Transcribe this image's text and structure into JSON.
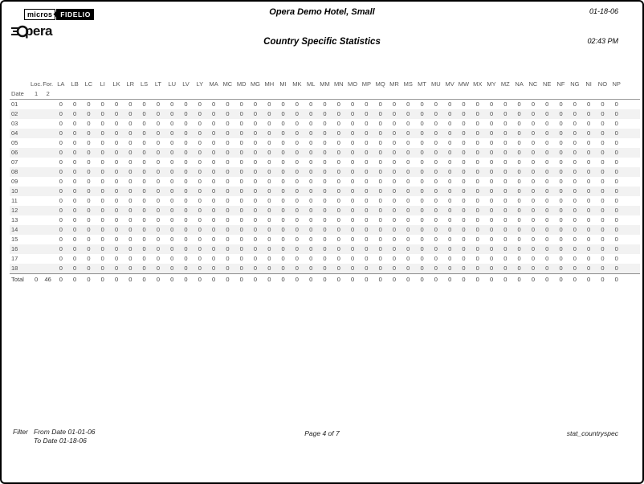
{
  "header": {
    "hotel_name": "Opera Demo Hotel, Small",
    "report_title": "Country Specific Statistics",
    "report_date": "01-18-06",
    "report_time": "02:43 PM"
  },
  "logo": {
    "micros": "micros",
    "fidelio": "FIDELIO",
    "opera_text": "pera"
  },
  "icons": {
    "diamond": "◆"
  },
  "colors": {
    "stripe": "#f2f2f2",
    "header_rule": "#9a9a9a",
    "total_rule": "#8c8c8c",
    "fidelio_bg": "#000000"
  },
  "table": {
    "header": {
      "loc": "Loc.",
      "for": "For.",
      "date": "Date",
      "loc_sub": "1",
      "for_sub": "2"
    },
    "country_columns": [
      "LA",
      "LB",
      "LC",
      "LI",
      "LK",
      "LR",
      "LS",
      "LT",
      "LU",
      "LV",
      "LY",
      "MA",
      "MC",
      "MD",
      "MG",
      "MH",
      "MI",
      "MK",
      "ML",
      "MM",
      "MN",
      "MO",
      "MP",
      "MQ",
      "MR",
      "MS",
      "MT",
      "MU",
      "MV",
      "MW",
      "MX",
      "MY",
      "MZ",
      "NA",
      "NC",
      "NE",
      "NF",
      "NG",
      "NI",
      "NO",
      "NP"
    ],
    "rows": [
      {
        "date": "01",
        "loc": "",
        "for": "",
        "values": [
          "0",
          "0",
          "0",
          "0",
          "0",
          "0",
          "0",
          "0",
          "0",
          "0",
          "0",
          "0",
          "0",
          "0",
          "0",
          "0",
          "0",
          "0",
          "0",
          "0",
          "0",
          "0",
          "0",
          "0",
          "0",
          "0",
          "0",
          "0",
          "0",
          "0",
          "0",
          "0",
          "0",
          "0",
          "0",
          "0",
          "0",
          "0",
          "0",
          "0",
          "0"
        ]
      },
      {
        "date": "02",
        "loc": "",
        "for": "",
        "values": [
          "0",
          "0",
          "0",
          "0",
          "0",
          "0",
          "0",
          "0",
          "0",
          "0",
          "0",
          "0",
          "0",
          "0",
          "0",
          "0",
          "0",
          "0",
          "0",
          "0",
          "0",
          "0",
          "0",
          "0",
          "0",
          "0",
          "0",
          "0",
          "0",
          "0",
          "0",
          "0",
          "0",
          "0",
          "0",
          "0",
          "0",
          "0",
          "0",
          "0",
          "0"
        ]
      },
      {
        "date": "03",
        "loc": "",
        "for": "",
        "values": [
          "0",
          "0",
          "0",
          "0",
          "0",
          "0",
          "0",
          "0",
          "0",
          "0",
          "0",
          "0",
          "0",
          "0",
          "0",
          "0",
          "0",
          "0",
          "0",
          "0",
          "0",
          "0",
          "0",
          "0",
          "0",
          "0",
          "0",
          "0",
          "0",
          "0",
          "0",
          "0",
          "0",
          "0",
          "0",
          "0",
          "0",
          "0",
          "0",
          "0",
          "0"
        ]
      },
      {
        "date": "04",
        "loc": "",
        "for": "",
        "values": [
          "0",
          "0",
          "0",
          "0",
          "0",
          "0",
          "0",
          "0",
          "0",
          "0",
          "0",
          "0",
          "0",
          "0",
          "0",
          "0",
          "0",
          "0",
          "0",
          "0",
          "0",
          "0",
          "0",
          "0",
          "0",
          "0",
          "0",
          "0",
          "0",
          "0",
          "0",
          "0",
          "0",
          "0",
          "0",
          "0",
          "0",
          "0",
          "0",
          "0",
          "0"
        ]
      },
      {
        "date": "05",
        "loc": "",
        "for": "",
        "values": [
          "0",
          "0",
          "0",
          "0",
          "0",
          "0",
          "0",
          "0",
          "0",
          "0",
          "0",
          "0",
          "0",
          "0",
          "0",
          "0",
          "0",
          "0",
          "0",
          "0",
          "0",
          "0",
          "0",
          "0",
          "0",
          "0",
          "0",
          "0",
          "0",
          "0",
          "0",
          "0",
          "0",
          "0",
          "0",
          "0",
          "0",
          "0",
          "0",
          "0",
          "0"
        ]
      },
      {
        "date": "06",
        "loc": "",
        "for": "",
        "values": [
          "0",
          "0",
          "0",
          "0",
          "0",
          "0",
          "0",
          "0",
          "0",
          "0",
          "0",
          "0",
          "0",
          "0",
          "0",
          "0",
          "0",
          "0",
          "0",
          "0",
          "0",
          "0",
          "0",
          "0",
          "0",
          "0",
          "0",
          "0",
          "0",
          "0",
          "0",
          "0",
          "0",
          "0",
          "0",
          "0",
          "0",
          "0",
          "0",
          "0",
          "0"
        ]
      },
      {
        "date": "07",
        "loc": "",
        "for": "",
        "values": [
          "0",
          "0",
          "0",
          "0",
          "0",
          "0",
          "0",
          "0",
          "0",
          "0",
          "0",
          "0",
          "0",
          "0",
          "0",
          "0",
          "0",
          "0",
          "0",
          "0",
          "0",
          "0",
          "0",
          "0",
          "0",
          "0",
          "0",
          "0",
          "0",
          "0",
          "0",
          "0",
          "0",
          "0",
          "0",
          "0",
          "0",
          "0",
          "0",
          "0",
          "0"
        ]
      },
      {
        "date": "08",
        "loc": "",
        "for": "",
        "values": [
          "0",
          "0",
          "0",
          "0",
          "0",
          "0",
          "0",
          "0",
          "0",
          "0",
          "0",
          "0",
          "0",
          "0",
          "0",
          "0",
          "0",
          "0",
          "0",
          "0",
          "0",
          "0",
          "0",
          "0",
          "0",
          "0",
          "0",
          "0",
          "0",
          "0",
          "0",
          "0",
          "0",
          "0",
          "0",
          "0",
          "0",
          "0",
          "0",
          "0",
          "0"
        ]
      },
      {
        "date": "09",
        "loc": "",
        "for": "",
        "values": [
          "0",
          "0",
          "0",
          "0",
          "0",
          "0",
          "0",
          "0",
          "0",
          "0",
          "0",
          "0",
          "0",
          "0",
          "0",
          "0",
          "0",
          "0",
          "0",
          "0",
          "0",
          "0",
          "0",
          "0",
          "0",
          "0",
          "0",
          "0",
          "0",
          "0",
          "0",
          "0",
          "0",
          "0",
          "0",
          "0",
          "0",
          "0",
          "0",
          "0",
          "0"
        ]
      },
      {
        "date": "10",
        "loc": "",
        "for": "",
        "values": [
          "0",
          "0",
          "0",
          "0",
          "0",
          "0",
          "0",
          "0",
          "0",
          "0",
          "0",
          "0",
          "0",
          "0",
          "0",
          "0",
          "0",
          "0",
          "0",
          "0",
          "0",
          "0",
          "0",
          "0",
          "0",
          "0",
          "0",
          "0",
          "0",
          "0",
          "0",
          "0",
          "0",
          "0",
          "0",
          "0",
          "0",
          "0",
          "0",
          "0",
          "0"
        ]
      },
      {
        "date": "11",
        "loc": "",
        "for": "",
        "values": [
          "0",
          "0",
          "0",
          "0",
          "0",
          "0",
          "0",
          "0",
          "0",
          "0",
          "0",
          "0",
          "0",
          "0",
          "0",
          "0",
          "0",
          "0",
          "0",
          "0",
          "0",
          "0",
          "0",
          "0",
          "0",
          "0",
          "0",
          "0",
          "0",
          "0",
          "0",
          "0",
          "0",
          "0",
          "0",
          "0",
          "0",
          "0",
          "0",
          "0",
          "0"
        ]
      },
      {
        "date": "12",
        "loc": "",
        "for": "",
        "values": [
          "0",
          "0",
          "0",
          "0",
          "0",
          "0",
          "0",
          "0",
          "0",
          "0",
          "0",
          "0",
          "0",
          "0",
          "0",
          "0",
          "0",
          "0",
          "0",
          "0",
          "0",
          "0",
          "0",
          "0",
          "0",
          "0",
          "0",
          "0",
          "0",
          "0",
          "0",
          "0",
          "0",
          "0",
          "0",
          "0",
          "0",
          "0",
          "0",
          "0",
          "0"
        ]
      },
      {
        "date": "13",
        "loc": "",
        "for": "",
        "values": [
          "0",
          "0",
          "0",
          "0",
          "0",
          "0",
          "0",
          "0",
          "0",
          "0",
          "0",
          "0",
          "0",
          "0",
          "0",
          "0",
          "0",
          "0",
          "0",
          "0",
          "0",
          "0",
          "0",
          "0",
          "0",
          "0",
          "0",
          "0",
          "0",
          "0",
          "0",
          "0",
          "0",
          "0",
          "0",
          "0",
          "0",
          "0",
          "0",
          "0",
          "0"
        ]
      },
      {
        "date": "14",
        "loc": "",
        "for": "",
        "values": [
          "0",
          "0",
          "0",
          "0",
          "0",
          "0",
          "0",
          "0",
          "0",
          "0",
          "0",
          "0",
          "0",
          "0",
          "0",
          "0",
          "0",
          "0",
          "0",
          "0",
          "0",
          "0",
          "0",
          "0",
          "0",
          "0",
          "0",
          "0",
          "0",
          "0",
          "0",
          "0",
          "0",
          "0",
          "0",
          "0",
          "0",
          "0",
          "0",
          "0",
          "0"
        ]
      },
      {
        "date": "15",
        "loc": "",
        "for": "",
        "values": [
          "0",
          "0",
          "0",
          "0",
          "0",
          "0",
          "0",
          "0",
          "0",
          "0",
          "0",
          "0",
          "0",
          "0",
          "0",
          "0",
          "0",
          "0",
          "0",
          "0",
          "0",
          "0",
          "0",
          "0",
          "0",
          "0",
          "0",
          "0",
          "0",
          "0",
          "0",
          "0",
          "0",
          "0",
          "0",
          "0",
          "0",
          "0",
          "0",
          "0",
          "0"
        ]
      },
      {
        "date": "16",
        "loc": "",
        "for": "",
        "values": [
          "0",
          "0",
          "0",
          "0",
          "0",
          "0",
          "0",
          "0",
          "0",
          "0",
          "0",
          "0",
          "0",
          "0",
          "0",
          "0",
          "0",
          "0",
          "0",
          "0",
          "0",
          "0",
          "0",
          "0",
          "0",
          "0",
          "0",
          "0",
          "0",
          "0",
          "0",
          "0",
          "0",
          "0",
          "0",
          "0",
          "0",
          "0",
          "0",
          "0",
          "0"
        ]
      },
      {
        "date": "17",
        "loc": "",
        "for": "",
        "values": [
          "0",
          "0",
          "0",
          "0",
          "0",
          "0",
          "0",
          "0",
          "0",
          "0",
          "0",
          "0",
          "0",
          "0",
          "0",
          "0",
          "0",
          "0",
          "0",
          "0",
          "0",
          "0",
          "0",
          "0",
          "0",
          "0",
          "0",
          "0",
          "0",
          "0",
          "0",
          "0",
          "0",
          "0",
          "0",
          "0",
          "0",
          "0",
          "0",
          "0",
          "0"
        ]
      },
      {
        "date": "18",
        "loc": "",
        "for": "",
        "values": [
          "0",
          "0",
          "0",
          "0",
          "0",
          "0",
          "0",
          "0",
          "0",
          "0",
          "0",
          "0",
          "0",
          "0",
          "0",
          "0",
          "0",
          "0",
          "0",
          "0",
          "0",
          "0",
          "0",
          "0",
          "0",
          "0",
          "0",
          "0",
          "0",
          "0",
          "0",
          "0",
          "0",
          "0",
          "0",
          "0",
          "0",
          "0",
          "0",
          "0",
          "0"
        ]
      }
    ],
    "total": {
      "label": "Total",
      "loc": "0",
      "for": "46",
      "values": [
        "0",
        "0",
        "0",
        "0",
        "0",
        "0",
        "0",
        "0",
        "0",
        "0",
        "0",
        "0",
        "0",
        "0",
        "0",
        "0",
        "0",
        "0",
        "0",
        "0",
        "0",
        "0",
        "0",
        "0",
        "0",
        "0",
        "0",
        "0",
        "0",
        "0",
        "0",
        "0",
        "0",
        "0",
        "0",
        "0",
        "0",
        "0",
        "0",
        "0",
        "0"
      ]
    }
  },
  "footer": {
    "filter_label": "Filter",
    "from_date": "From Date 01-01-06",
    "to_date": "To Date 01-18-06",
    "page_info": "Page 4 of 7",
    "report_code": "stat_countryspec"
  }
}
